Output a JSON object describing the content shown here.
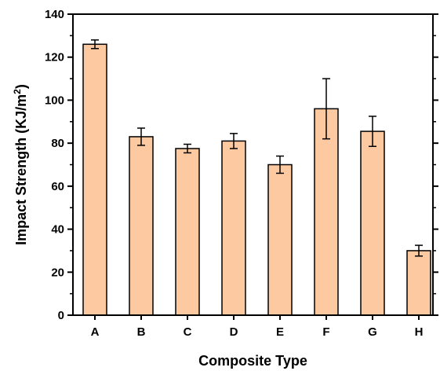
{
  "chart_data": {
    "type": "bar",
    "categories": [
      "A",
      "B",
      "C",
      "D",
      "E",
      "F",
      "G",
      "H"
    ],
    "values": [
      126,
      83,
      77.5,
      81,
      70,
      96,
      85.5,
      30
    ],
    "errors": [
      2,
      4,
      2,
      3.5,
      4,
      14,
      7,
      2.5
    ],
    "xlabel": "Composite Type",
    "ylabel_main": "Impact Strength (KJ/m",
    "ylabel_sup": "2",
    "ylabel_close": ")",
    "ylim": [
      0,
      140
    ],
    "yticks": [
      0,
      20,
      40,
      60,
      80,
      100,
      120,
      140
    ],
    "grid": false,
    "bar_color": "#fdc9a1"
  }
}
